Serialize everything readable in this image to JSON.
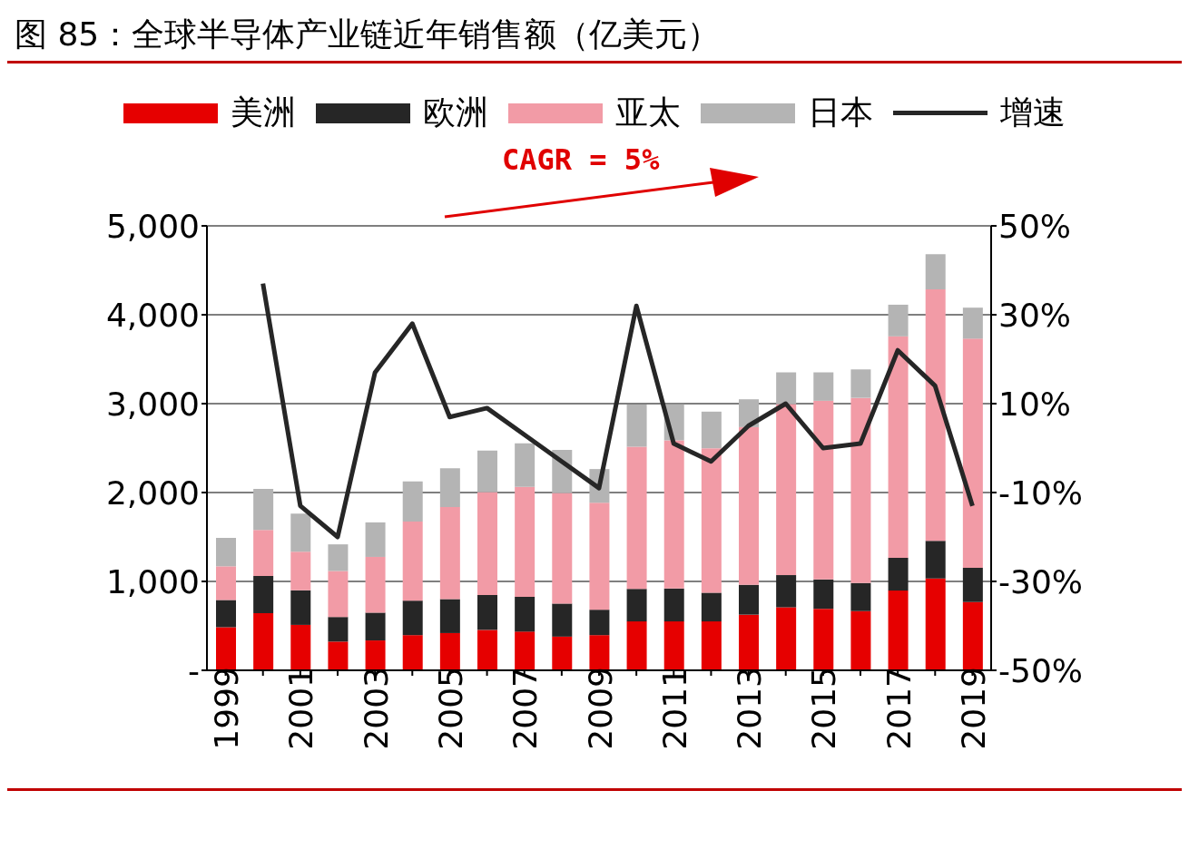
{
  "chart_data": {
    "type": "bar",
    "title": "图 85：全球半导体产业链近年销售额（亿美元）",
    "annotations": [
      "CAGR = 5%"
    ],
    "categories": [
      "1999",
      null,
      "2001",
      null,
      "2003",
      null,
      "2005",
      null,
      "2007",
      null,
      "2009",
      null,
      "2011",
      null,
      "2013",
      null,
      "2015",
      null,
      "2017",
      null,
      "2019"
    ],
    "series": [
      {
        "name": "美洲",
        "color": "#e60000",
        "values": [
          485,
          643,
          511,
          323,
          336,
          396,
          419,
          455,
          435,
          379,
          396,
          550,
          550,
          550,
          626,
          709,
          692,
          666,
          897,
          1032,
          768
        ]
      },
      {
        "name": "欧洲",
        "color": "#262626",
        "values": [
          306,
          418,
          389,
          277,
          313,
          388,
          382,
          392,
          392,
          372,
          286,
          366,
          370,
          323,
          336,
          362,
          330,
          316,
          369,
          425,
          386
        ]
      },
      {
        "name": "亚太",
        "color": "#f29ba6",
        "values": [
          379,
          518,
          435,
          517,
          627,
          890,
          1035,
          1157,
          1236,
          1243,
          1203,
          1599,
          1667,
          1625,
          1774,
          1925,
          2010,
          2083,
          2491,
          2828,
          2577
        ]
      },
      {
        "name": "日本",
        "color": "#b4b4b4",
        "values": [
          320,
          461,
          428,
          300,
          388,
          452,
          438,
          468,
          491,
          485,
          379,
          475,
          406,
          412,
          313,
          356,
          320,
          320,
          356,
          395,
          349
        ]
      },
      {
        "name": "增速",
        "type": "line",
        "axis": "y2",
        "color": "#262626",
        "values": [
          null,
          37,
          -13,
          -20,
          17,
          28,
          7,
          9,
          3,
          -3,
          -9,
          32,
          1,
          -3,
          5,
          10,
          0,
          1,
          22,
          14,
          -13
        ]
      }
    ],
    "stacked": true,
    "ylim": [
      0,
      5000
    ],
    "yticks": [
      {
        "value": 0,
        "label": "-"
      },
      {
        "value": 1000,
        "label": "1,000"
      },
      {
        "value": 2000,
        "label": "2,000"
      },
      {
        "value": 3000,
        "label": "3,000"
      },
      {
        "value": 4000,
        "label": "4,000"
      },
      {
        "value": 5000,
        "label": "5,000"
      }
    ],
    "y2lim": [
      -50,
      50
    ],
    "y2ticks": [
      {
        "value": -50,
        "label": "-50%"
      },
      {
        "value": -30,
        "label": "-30%"
      },
      {
        "value": -10,
        "label": "-10%"
      },
      {
        "value": 10,
        "label": "10%"
      },
      {
        "value": 30,
        "label": "30%"
      },
      {
        "value": 50,
        "label": "50%"
      }
    ],
    "grid": "y",
    "legend": "top",
    "line_style": "solid"
  }
}
